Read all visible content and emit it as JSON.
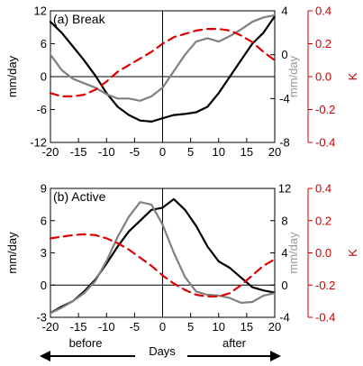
{
  "chart_data": [
    {
      "type": "line",
      "panel_label": "(a) Break",
      "x_ticks": [
        "-20",
        "-15",
        "-10",
        "-5",
        "0",
        "5",
        "10",
        "15",
        "20"
      ],
      "xlim": [
        -20,
        20
      ],
      "axes": {
        "left": {
          "label": "mm/day",
          "ylim": [
            -12,
            12
          ],
          "ticks": [
            -12,
            -6,
            0,
            6,
            12
          ],
          "color": "#000000"
        },
        "right1": {
          "label": "mm/day",
          "ylim": [
            -8,
            4
          ],
          "ticks": [
            -8,
            -4,
            0,
            4
          ],
          "color": "#999999"
        },
        "right2": {
          "label": "K",
          "ylim": [
            -0.4,
            0.4
          ],
          "ticks": [
            "-0.4",
            "-0.2",
            "0.0",
            "0.2",
            "0.4"
          ],
          "color": "#cc0000"
        }
      },
      "grid": false,
      "series": [
        {
          "axis": "left",
          "color": "#000000",
          "style": "solid",
          "x": [
            -20,
            -18,
            -16,
            -14,
            -12,
            -10,
            -8,
            -6,
            -4,
            -2,
            0,
            2,
            4,
            6,
            8,
            10,
            12,
            14,
            16,
            18,
            20
          ],
          "values": [
            10,
            8,
            5.5,
            3,
            0.2,
            -3,
            -5.5,
            -7,
            -8,
            -8.2,
            -7.6,
            -7,
            -6.8,
            -6.5,
            -5.5,
            -3,
            0,
            3,
            6,
            8,
            11
          ]
        },
        {
          "axis": "right1",
          "color": "#808080",
          "style": "solid",
          "x": [
            -20,
            -18,
            -16,
            -14,
            -12,
            -10,
            -8,
            -6,
            -4,
            -2,
            0,
            2,
            4,
            6,
            8,
            10,
            12,
            14,
            16,
            18,
            20
          ],
          "values": [
            0,
            -1.4,
            -2.2,
            -2.6,
            -3,
            -3.6,
            -4,
            -4,
            -4.2,
            -3.8,
            -3.0,
            -1.5,
            0,
            1.2,
            1.5,
            1.2,
            1.7,
            2.3,
            3,
            3.4,
            3.6
          ]
        },
        {
          "axis": "right2",
          "color": "#dd0000",
          "style": "dashed",
          "x": [
            -20,
            -18,
            -16,
            -14,
            -12,
            -10,
            -8,
            -6,
            -4,
            -2,
            0,
            2,
            4,
            6,
            8,
            10,
            12,
            14,
            16,
            18,
            20
          ],
          "values": [
            -0.1,
            -0.12,
            -0.12,
            -0.11,
            -0.08,
            -0.03,
            0.03,
            0.07,
            0.11,
            0.15,
            0.2,
            0.24,
            0.26,
            0.28,
            0.29,
            0.29,
            0.28,
            0.25,
            0.21,
            0.15,
            0.1
          ]
        }
      ]
    },
    {
      "type": "line",
      "panel_label": "(b) Active",
      "x_ticks": [
        "-20",
        "-15",
        "-10",
        "-5",
        "0",
        "5",
        "10",
        "15",
        "20"
      ],
      "xlim": [
        -20,
        20
      ],
      "xlabel": "Days",
      "annotations": {
        "before": "before",
        "after": "after"
      },
      "axes": {
        "left": {
          "label": "mm/day",
          "ylim": [
            -3,
            9
          ],
          "ticks": [
            -3,
            0,
            3,
            6,
            9
          ],
          "color": "#000000"
        },
        "right1": {
          "label": "mm/day",
          "ylim": [
            -4,
            12
          ],
          "ticks": [
            -4,
            0,
            4,
            8,
            12
          ],
          "color": "#999999"
        },
        "right2": {
          "label": "K",
          "ylim": [
            -0.4,
            0.4
          ],
          "ticks": [
            "-0.4",
            "-0.2",
            "0.0",
            "0.2",
            "0.4"
          ],
          "color": "#cc0000"
        }
      },
      "grid": false,
      "series": [
        {
          "axis": "left",
          "color": "#000000",
          "style": "solid",
          "x": [
            -20,
            -18,
            -16,
            -14,
            -12,
            -10,
            -8,
            -6,
            -4,
            -2,
            0,
            2,
            4,
            6,
            8,
            10,
            12,
            14,
            16,
            18,
            20
          ],
          "values": [
            -2.6,
            -2.0,
            -1.5,
            -0.6,
            0.5,
            2.0,
            3.6,
            5.0,
            6.0,
            7.0,
            7.2,
            8.0,
            7.0,
            5.5,
            3.6,
            2.2,
            1.6,
            0.7,
            -0.2,
            -0.5,
            -0.7
          ]
        },
        {
          "axis": "right1",
          "color": "#808080",
          "style": "solid",
          "x": [
            -20,
            -18,
            -16,
            -14,
            -12,
            -10,
            -8,
            -6,
            -4,
            -2,
            0,
            2,
            4,
            6,
            8,
            10,
            12,
            14,
            16,
            18,
            20
          ],
          "values": [
            -3.5,
            -2.8,
            -2.0,
            -1.0,
            0.5,
            3.0,
            6.0,
            8.5,
            10.3,
            10.0,
            7.5,
            4.0,
            1.0,
            -0.8,
            -1.2,
            -1.3,
            -1.6,
            -2.2,
            -2.1,
            -1.3,
            -1.0
          ]
        },
        {
          "axis": "right2",
          "color": "#dd0000",
          "style": "dashed",
          "x": [
            -20,
            -18,
            -16,
            -14,
            -12,
            -10,
            -8,
            -6,
            -4,
            -2,
            0,
            2,
            4,
            6,
            8,
            10,
            12,
            14,
            16,
            18,
            20
          ],
          "values": [
            0.09,
            0.1,
            0.11,
            0.115,
            0.11,
            0.09,
            0.06,
            0.02,
            -0.03,
            -0.08,
            -0.14,
            -0.19,
            -0.23,
            -0.26,
            -0.27,
            -0.27,
            -0.25,
            -0.2,
            -0.14,
            -0.08,
            -0.04
          ]
        }
      ]
    }
  ]
}
